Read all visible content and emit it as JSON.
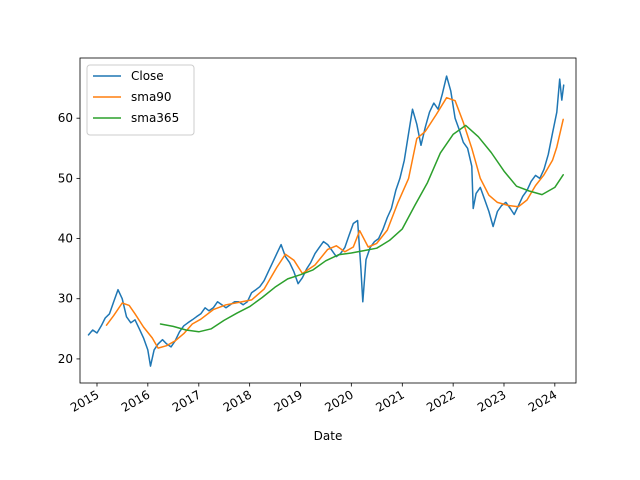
{
  "chart_data": {
    "type": "line",
    "title": "",
    "xlabel": "Date",
    "ylabel": "",
    "xlim": [
      "2014-09-01",
      "2024-06-01"
    ],
    "ylim": [
      16,
      70
    ],
    "x_ticks": [
      {
        "date": "2015-01-01",
        "label": "2015"
      },
      {
        "date": "2016-01-01",
        "label": "2016"
      },
      {
        "date": "2017-01-01",
        "label": "2017"
      },
      {
        "date": "2018-01-01",
        "label": "2018"
      },
      {
        "date": "2019-01-01",
        "label": "2019"
      },
      {
        "date": "2020-01-01",
        "label": "2020"
      },
      {
        "date": "2021-01-01",
        "label": "2021"
      },
      {
        "date": "2022-01-01",
        "label": "2022"
      },
      {
        "date": "2023-01-01",
        "label": "2023"
      },
      {
        "date": "2024-01-01",
        "label": "2024"
      }
    ],
    "y_ticks": [
      20,
      30,
      40,
      50,
      60
    ],
    "grid": false,
    "legend_position": "top-left",
    "series": [
      {
        "name": "Close",
        "color": "#1f77b4",
        "points": [
          [
            "2014-11-01",
            24.0
          ],
          [
            "2014-12-01",
            24.8
          ],
          [
            "2015-01-01",
            24.3
          ],
          [
            "2015-02-01",
            25.5
          ],
          [
            "2015-03-01",
            26.8
          ],
          [
            "2015-04-01",
            27.5
          ],
          [
            "2015-05-01",
            29.5
          ],
          [
            "2015-06-01",
            31.5
          ],
          [
            "2015-07-01",
            30.0
          ],
          [
            "2015-08-01",
            27.0
          ],
          [
            "2015-09-01",
            26.0
          ],
          [
            "2015-10-01",
            26.5
          ],
          [
            "2015-11-01",
            25.0
          ],
          [
            "2015-12-01",
            23.5
          ],
          [
            "2016-01-01",
            21.5
          ],
          [
            "2016-01-20",
            18.8
          ],
          [
            "2016-02-15",
            21.5
          ],
          [
            "2016-03-15",
            22.5
          ],
          [
            "2016-04-15",
            23.2
          ],
          [
            "2016-05-15",
            22.5
          ],
          [
            "2016-06-15",
            22.0
          ],
          [
            "2016-07-15",
            23.0
          ],
          [
            "2016-08-15",
            24.5
          ],
          [
            "2016-09-15",
            25.5
          ],
          [
            "2016-10-15",
            26.0
          ],
          [
            "2016-11-15",
            26.5
          ],
          [
            "2016-12-15",
            27.0
          ],
          [
            "2017-01-15",
            27.5
          ],
          [
            "2017-02-15",
            28.5
          ],
          [
            "2017-03-15",
            28.0
          ],
          [
            "2017-04-15",
            28.5
          ],
          [
            "2017-05-15",
            29.5
          ],
          [
            "2017-06-15",
            29.0
          ],
          [
            "2017-07-15",
            28.5
          ],
          [
            "2017-08-15",
            29.0
          ],
          [
            "2017-09-15",
            29.5
          ],
          [
            "2017-10-15",
            29.5
          ],
          [
            "2017-11-15",
            29.0
          ],
          [
            "2017-12-15",
            29.5
          ],
          [
            "2018-01-15",
            31.0
          ],
          [
            "2018-02-15",
            31.5
          ],
          [
            "2018-03-15",
            32.0
          ],
          [
            "2018-04-15",
            33.0
          ],
          [
            "2018-05-15",
            34.5
          ],
          [
            "2018-06-15",
            36.0
          ],
          [
            "2018-07-15",
            37.5
          ],
          [
            "2018-08-15",
            39.0
          ],
          [
            "2018-09-15",
            37.0
          ],
          [
            "2018-10-15",
            36.0
          ],
          [
            "2018-11-15",
            34.5
          ],
          [
            "2018-12-15",
            32.5
          ],
          [
            "2019-01-15",
            33.5
          ],
          [
            "2019-02-15",
            35.0
          ],
          [
            "2019-03-15",
            36.0
          ],
          [
            "2019-04-15",
            37.5
          ],
          [
            "2019-05-15",
            38.5
          ],
          [
            "2019-06-15",
            39.5
          ],
          [
            "2019-07-15",
            39.0
          ],
          [
            "2019-08-15",
            38.0
          ],
          [
            "2019-09-15",
            37.0
          ],
          [
            "2019-10-15",
            37.5
          ],
          [
            "2019-11-15",
            38.5
          ],
          [
            "2019-12-15",
            40.5
          ],
          [
            "2020-01-15",
            42.5
          ],
          [
            "2020-02-15",
            43.0
          ],
          [
            "2020-03-10",
            35.0
          ],
          [
            "2020-03-23",
            29.5
          ],
          [
            "2020-04-15",
            36.5
          ],
          [
            "2020-05-15",
            38.5
          ],
          [
            "2020-06-15",
            39.5
          ],
          [
            "2020-07-15",
            40.0
          ],
          [
            "2020-08-15",
            41.5
          ],
          [
            "2020-09-15",
            43.5
          ],
          [
            "2020-10-15",
            45.0
          ],
          [
            "2020-11-15",
            48.0
          ],
          [
            "2020-12-15",
            50.0
          ],
          [
            "2021-01-15",
            53.0
          ],
          [
            "2021-02-15",
            57.5
          ],
          [
            "2021-03-15",
            61.5
          ],
          [
            "2021-04-15",
            59.0
          ],
          [
            "2021-05-15",
            55.5
          ],
          [
            "2021-06-15",
            58.5
          ],
          [
            "2021-07-15",
            61.0
          ],
          [
            "2021-08-15",
            62.5
          ],
          [
            "2021-09-15",
            61.5
          ],
          [
            "2021-10-15",
            64.0
          ],
          [
            "2021-11-15",
            67.0
          ],
          [
            "2021-12-15",
            64.5
          ],
          [
            "2022-01-15",
            60.0
          ],
          [
            "2022-02-15",
            58.0
          ],
          [
            "2022-03-15",
            56.0
          ],
          [
            "2022-04-15",
            55.0
          ],
          [
            "2022-05-15",
            52.0
          ],
          [
            "2022-05-25",
            45.0
          ],
          [
            "2022-06-15",
            47.5
          ],
          [
            "2022-07-15",
            48.5
          ],
          [
            "2022-08-15",
            46.5
          ],
          [
            "2022-09-15",
            44.5
          ],
          [
            "2022-10-15",
            42.0
          ],
          [
            "2022-11-15",
            44.5
          ],
          [
            "2022-12-15",
            45.5
          ],
          [
            "2023-01-15",
            46.0
          ],
          [
            "2023-02-15",
            45.0
          ],
          [
            "2023-03-15",
            44.0
          ],
          [
            "2023-04-15",
            45.5
          ],
          [
            "2023-05-15",
            47.0
          ],
          [
            "2023-06-15",
            48.0
          ],
          [
            "2023-07-15",
            49.5
          ],
          [
            "2023-08-15",
            50.5
          ],
          [
            "2023-09-15",
            50.0
          ],
          [
            "2023-10-15",
            51.5
          ],
          [
            "2023-11-15",
            54.0
          ],
          [
            "2023-12-15",
            57.5
          ],
          [
            "2024-01-15",
            61.0
          ],
          [
            "2024-02-05",
            66.5
          ],
          [
            "2024-02-20",
            63.0
          ],
          [
            "2024-03-05",
            65.5
          ]
        ]
      },
      {
        "name": "sma90",
        "color": "#ff7f0e",
        "points": [
          [
            "2015-03-10",
            25.6
          ],
          [
            "2015-05-01",
            27.2
          ],
          [
            "2015-07-01",
            29.3
          ],
          [
            "2015-08-20",
            28.9
          ],
          [
            "2015-10-01",
            27.5
          ],
          [
            "2015-12-01",
            25.3
          ],
          [
            "2016-02-01",
            23.5
          ],
          [
            "2016-03-15",
            21.8
          ],
          [
            "2016-05-15",
            22.2
          ],
          [
            "2016-07-15",
            23.0
          ],
          [
            "2016-09-15",
            24.2
          ],
          [
            "2016-11-15",
            25.8
          ],
          [
            "2017-01-15",
            26.6
          ],
          [
            "2017-04-15",
            28.2
          ],
          [
            "2017-07-15",
            29.0
          ],
          [
            "2017-10-15",
            29.4
          ],
          [
            "2018-01-15",
            29.8
          ],
          [
            "2018-04-15",
            31.6
          ],
          [
            "2018-07-15",
            35.2
          ],
          [
            "2018-09-15",
            37.4
          ],
          [
            "2018-11-15",
            36.4
          ],
          [
            "2019-01-15",
            34.2
          ],
          [
            "2019-04-15",
            35.6
          ],
          [
            "2019-07-15",
            38.2
          ],
          [
            "2019-09-15",
            38.8
          ],
          [
            "2019-11-15",
            37.8
          ],
          [
            "2020-01-15",
            38.6
          ],
          [
            "2020-03-01",
            41.3
          ],
          [
            "2020-05-01",
            38.6
          ],
          [
            "2020-07-01",
            39.2
          ],
          [
            "2020-09-15",
            41.4
          ],
          [
            "2020-12-01",
            46.0
          ],
          [
            "2021-02-15",
            50.0
          ],
          [
            "2021-04-15",
            56.6
          ],
          [
            "2021-06-15",
            57.8
          ],
          [
            "2021-09-01",
            60.6
          ],
          [
            "2021-11-15",
            63.4
          ],
          [
            "2022-01-15",
            62.9
          ],
          [
            "2022-03-15",
            59.3
          ],
          [
            "2022-05-15",
            55.0
          ],
          [
            "2022-07-15",
            50.0
          ],
          [
            "2022-09-15",
            47.2
          ],
          [
            "2022-11-15",
            46.0
          ],
          [
            "2023-02-01",
            45.5
          ],
          [
            "2023-04-15",
            45.3
          ],
          [
            "2023-06-15",
            46.4
          ],
          [
            "2023-08-15",
            48.8
          ],
          [
            "2023-10-15",
            50.6
          ],
          [
            "2023-12-15",
            53.0
          ],
          [
            "2024-01-15",
            55.2
          ],
          [
            "2024-03-01",
            59.8
          ]
        ]
      },
      {
        "name": "sma365",
        "color": "#2ca02c",
        "points": [
          [
            "2016-04-01",
            25.8
          ],
          [
            "2016-07-01",
            25.4
          ],
          [
            "2016-10-01",
            24.8
          ],
          [
            "2017-01-01",
            24.5
          ],
          [
            "2017-04-01",
            25.0
          ],
          [
            "2017-07-01",
            26.4
          ],
          [
            "2017-10-01",
            27.6
          ],
          [
            "2018-01-01",
            28.7
          ],
          [
            "2018-04-01",
            30.2
          ],
          [
            "2018-07-01",
            31.9
          ],
          [
            "2018-10-01",
            33.3
          ],
          [
            "2019-01-01",
            34.0
          ],
          [
            "2019-04-01",
            34.8
          ],
          [
            "2019-07-01",
            36.3
          ],
          [
            "2019-10-01",
            37.3
          ],
          [
            "2020-01-01",
            37.6
          ],
          [
            "2020-04-01",
            38.0
          ],
          [
            "2020-07-01",
            38.4
          ],
          [
            "2020-10-01",
            39.7
          ],
          [
            "2021-01-01",
            41.6
          ],
          [
            "2021-04-01",
            45.5
          ],
          [
            "2021-07-01",
            49.3
          ],
          [
            "2021-10-01",
            54.2
          ],
          [
            "2022-01-01",
            57.3
          ],
          [
            "2022-04-01",
            58.8
          ],
          [
            "2022-07-01",
            56.9
          ],
          [
            "2022-10-01",
            54.3
          ],
          [
            "2023-01-01",
            51.2
          ],
          [
            "2023-04-01",
            48.7
          ],
          [
            "2023-07-01",
            47.9
          ],
          [
            "2023-10-01",
            47.3
          ],
          [
            "2024-01-01",
            48.5
          ],
          [
            "2024-03-01",
            50.6
          ]
        ]
      }
    ]
  }
}
